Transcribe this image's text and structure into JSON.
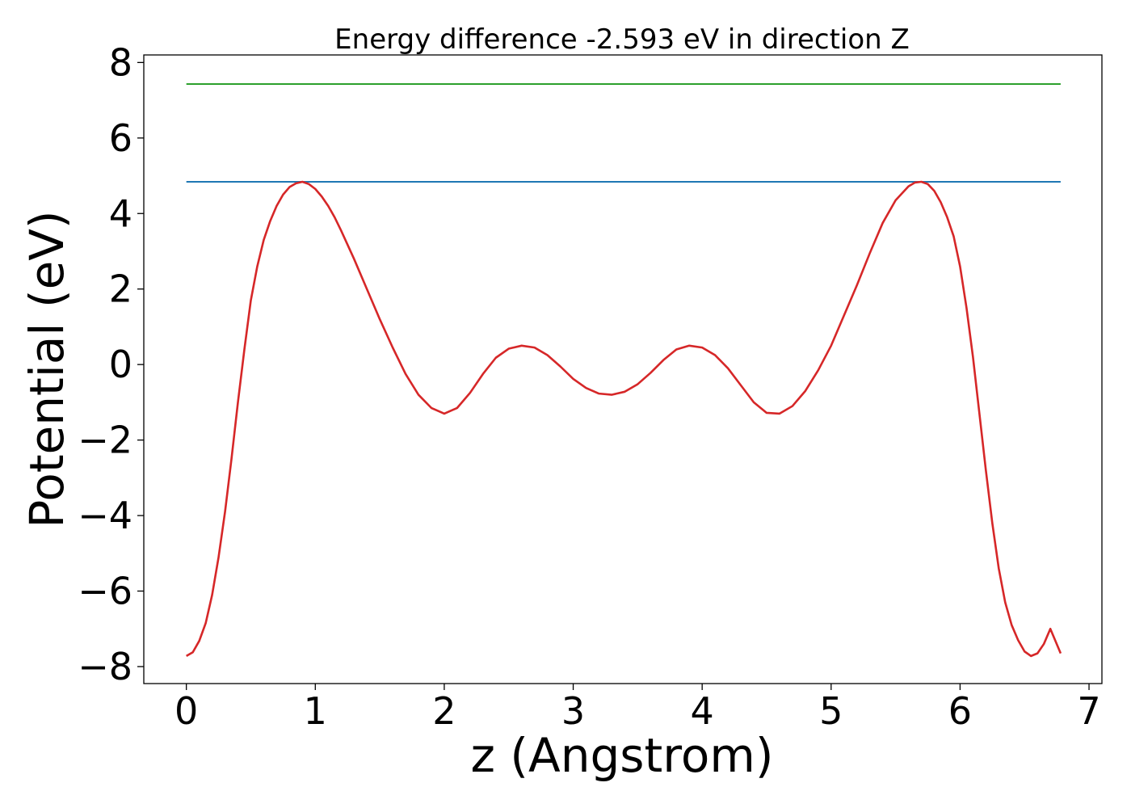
{
  "chart_data": {
    "type": "line",
    "title": "Energy difference -2.593 eV in direction Z",
    "xlabel": "z (Angstrom)",
    "ylabel": "Potential (eV)",
    "xlim": [
      -0.33,
      7.1
    ],
    "ylim": [
      -8.45,
      8.2
    ],
    "xticks": [
      0,
      1,
      2,
      3,
      4,
      5,
      6,
      7
    ],
    "xtick_labels": [
      "0",
      "1",
      "2",
      "3",
      "4",
      "5",
      "6",
      "7"
    ],
    "yticks": [
      -8,
      -6,
      -4,
      -2,
      0,
      2,
      4,
      6,
      8
    ],
    "ytick_labels": [
      "−8",
      "−6",
      "−4",
      "−2",
      "0",
      "2",
      "4",
      "6",
      "8"
    ],
    "grid": false,
    "legend": "none",
    "series": [
      {
        "color": "#2ca02c",
        "x": [
          0,
          6.78
        ],
        "y": [
          7.43,
          7.43
        ]
      },
      {
        "color": "#1f77b4",
        "x": [
          0,
          6.78
        ],
        "y": [
          4.84,
          4.84
        ]
      },
      {
        "color": "#d62728",
        "x": [
          0.0,
          0.05,
          0.1,
          0.15,
          0.2,
          0.25,
          0.3,
          0.35,
          0.4,
          0.45,
          0.5,
          0.55,
          0.6,
          0.65,
          0.7,
          0.75,
          0.8,
          0.85,
          0.9,
          0.95,
          1.0,
          1.05,
          1.1,
          1.15,
          1.2,
          1.3,
          1.4,
          1.5,
          1.6,
          1.7,
          1.8,
          1.9,
          2.0,
          2.1,
          2.2,
          2.3,
          2.4,
          2.5,
          2.6,
          2.7,
          2.8,
          2.9,
          3.0,
          3.1,
          3.2,
          3.3,
          3.4,
          3.5,
          3.6,
          3.7,
          3.8,
          3.9,
          4.0,
          4.1,
          4.2,
          4.3,
          4.4,
          4.5,
          4.6,
          4.7,
          4.8,
          4.9,
          5.0,
          5.1,
          5.2,
          5.3,
          5.4,
          5.5,
          5.6,
          5.65,
          5.7,
          5.75,
          5.8,
          5.85,
          5.9,
          5.95,
          6.0,
          6.05,
          6.1,
          6.15,
          6.2,
          6.25,
          6.3,
          6.35,
          6.4,
          6.45,
          6.5,
          6.55,
          6.6,
          6.65,
          6.7,
          6.78
        ],
        "y": [
          -7.72,
          -7.62,
          -7.32,
          -6.85,
          -6.1,
          -5.1,
          -3.9,
          -2.5,
          -1.0,
          0.4,
          1.7,
          2.6,
          3.3,
          3.8,
          4.2,
          4.5,
          4.7,
          4.8,
          4.84,
          4.78,
          4.65,
          4.45,
          4.2,
          3.9,
          3.55,
          2.8,
          2.0,
          1.2,
          0.45,
          -0.25,
          -0.8,
          -1.15,
          -1.3,
          -1.15,
          -0.75,
          -0.25,
          0.18,
          0.42,
          0.5,
          0.45,
          0.25,
          -0.05,
          -0.38,
          -0.62,
          -0.77,
          -0.8,
          -0.72,
          -0.52,
          -0.22,
          0.12,
          0.4,
          0.5,
          0.45,
          0.25,
          -0.1,
          -0.55,
          -1.0,
          -1.28,
          -1.3,
          -1.1,
          -0.7,
          -0.15,
          0.5,
          1.3,
          2.1,
          2.95,
          3.75,
          4.35,
          4.72,
          4.82,
          4.84,
          4.78,
          4.6,
          4.3,
          3.9,
          3.4,
          2.6,
          1.5,
          0.2,
          -1.3,
          -2.8,
          -4.2,
          -5.4,
          -6.3,
          -6.9,
          -7.3,
          -7.6,
          -7.72,
          -7.65,
          -7.4,
          -7.0,
          -7.65
        ]
      }
    ]
  }
}
